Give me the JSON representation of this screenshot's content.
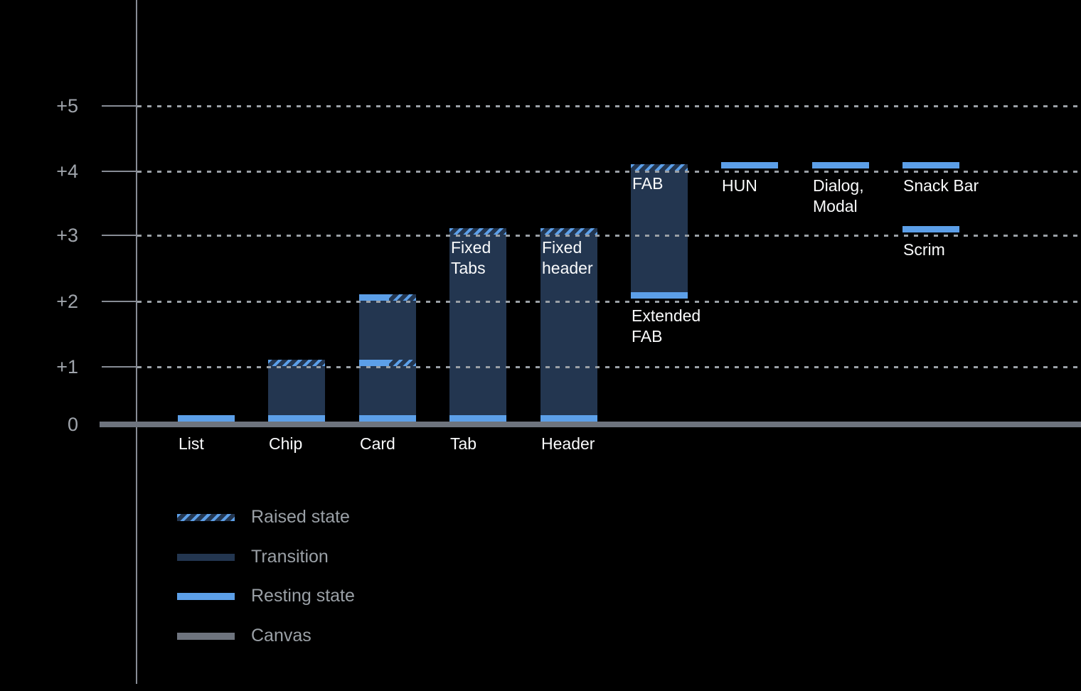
{
  "colors": {
    "background": "#000000",
    "resting_blue": "#5C9FE8",
    "transition_navy": "#233650",
    "canvas_gray": "#6E747E",
    "axis_gray": "#878C95",
    "grid_dot_gray": "#9AA0A6",
    "tick_label_gray": "#9FA4AB",
    "legend_text_gray": "#9AA0A6",
    "bar_label_white": "#FAFBFC"
  },
  "chart_data": {
    "type": "bar",
    "variant": "material-elevation-diagram",
    "title": "",
    "xlabel": "",
    "ylabel": "",
    "ylim": [
      0,
      5
    ],
    "grid": "horizontal-dotted",
    "legend_position": "bottom-left",
    "yticks": [
      {
        "label": "+5",
        "level": 5
      },
      {
        "label": "+4",
        "level": 4
      },
      {
        "label": "+3",
        "level": 3
      },
      {
        "label": "+2",
        "level": 2
      },
      {
        "label": "+1",
        "level": 1
      },
      {
        "label": "0",
        "level": 0
      }
    ],
    "items": [
      {
        "name": "list",
        "label_lines": [
          "List"
        ],
        "label_placement": "axis",
        "col": 0,
        "bar": null,
        "bands": [
          {
            "level": 0,
            "style": "resting"
          }
        ]
      },
      {
        "name": "chip",
        "label_lines": [
          "Chip"
        ],
        "label_placement": "axis",
        "col": 1,
        "bar": {
          "from": 0,
          "to": 1
        },
        "bands": [
          {
            "level": 0,
            "style": "resting"
          },
          {
            "level": 1,
            "style": "raised"
          }
        ]
      },
      {
        "name": "card",
        "label_lines": [
          "Card"
        ],
        "label_placement": "axis",
        "col": 2,
        "bar": {
          "from": 0,
          "to": 2
        },
        "bands": [
          {
            "level": 0,
            "style": "resting"
          },
          {
            "level": 1,
            "style": "resting-raised"
          },
          {
            "level": 2,
            "style": "resting-raised"
          }
        ]
      },
      {
        "name": "tab",
        "label_lines": [
          "Tab"
        ],
        "label_placement": "axis",
        "col": 3,
        "bar": {
          "from": 0,
          "to": 3
        },
        "bands": [
          {
            "level": 0,
            "style": "resting"
          },
          {
            "level": 3,
            "style": "raised"
          }
        ],
        "inner_label_lines": [
          "Fixed",
          "Tabs"
        ]
      },
      {
        "name": "header",
        "label_lines": [
          "Header"
        ],
        "label_placement": "axis",
        "col": 4,
        "bar": {
          "from": 0,
          "to": 3
        },
        "bands": [
          {
            "level": 0,
            "style": "resting"
          },
          {
            "level": 3,
            "style": "raised"
          }
        ],
        "inner_label_lines": [
          "Fixed",
          "header"
        ]
      },
      {
        "name": "fab",
        "label_lines": [
          "Extended",
          "FAB"
        ],
        "label_placement": "below-band",
        "col": 5,
        "bar": {
          "from": 2,
          "to": 4
        },
        "bands": [
          {
            "level": 2,
            "style": "resting",
            "float": true
          },
          {
            "level": 4,
            "style": "raised"
          }
        ],
        "inner_label_lines": [
          "FAB"
        ]
      },
      {
        "name": "hun",
        "label_lines": [
          "HUN"
        ],
        "label_placement": "below-band",
        "col": 6,
        "bar": null,
        "bands": [
          {
            "level": 4,
            "style": "resting",
            "float": true
          }
        ]
      },
      {
        "name": "dialog-modal",
        "label_lines": [
          "Dialog,",
          "Modal"
        ],
        "label_placement": "below-band",
        "col": 7,
        "bar": null,
        "bands": [
          {
            "level": 4,
            "style": "resting",
            "float": true
          }
        ]
      },
      {
        "name": "snack-bar",
        "label_lines": [
          "Snack Bar"
        ],
        "label_placement": "below-band",
        "col": 8,
        "bar": null,
        "bands": [
          {
            "level": 4,
            "style": "resting",
            "float": true
          }
        ]
      },
      {
        "name": "scrim",
        "label_lines": [
          "Scrim"
        ],
        "label_placement": "below-band",
        "col": 8,
        "bar": null,
        "bands": [
          {
            "level": 3,
            "style": "resting",
            "float": true
          }
        ]
      }
    ],
    "legend": {
      "entries": [
        {
          "style": "raised",
          "label": "Raised state"
        },
        {
          "style": "transition",
          "label": "Transition"
        },
        {
          "style": "resting",
          "label": "Resting state"
        },
        {
          "style": "canvas",
          "label": "Canvas"
        }
      ]
    }
  }
}
